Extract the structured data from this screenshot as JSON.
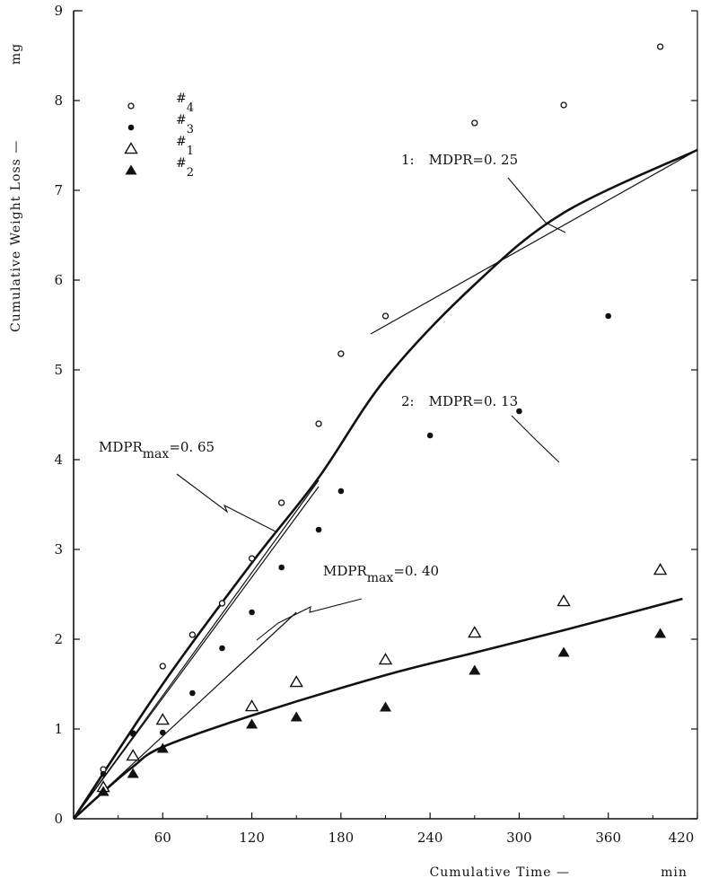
{
  "chart_data": {
    "type": "scatter",
    "xlabel": "Cumulative Time —",
    "xunit": "min",
    "ylabel": "Cumulative Weight Loss —",
    "yunit": "mg",
    "xlim": [
      0,
      420
    ],
    "ylim": [
      0,
      9
    ],
    "xticks": [
      60,
      120,
      180,
      240,
      300,
      360,
      420
    ],
    "yticks": [
      0,
      1,
      2,
      3,
      4,
      5,
      6,
      7,
      8,
      9
    ],
    "grid": false,
    "legend_position": "top-left",
    "series": [
      {
        "name": "#4",
        "marker": "open-circle",
        "x": [
          20,
          40,
          60,
          80,
          100,
          120,
          140,
          165,
          180,
          210,
          270,
          330,
          395
        ],
        "y": [
          0.55,
          0.95,
          1.7,
          2.05,
          2.4,
          2.9,
          3.52,
          4.4,
          5.18,
          5.6,
          7.75,
          7.95,
          8.6
        ]
      },
      {
        "name": "#3",
        "marker": "filled-circle",
        "x": [
          20,
          40,
          60,
          80,
          100,
          120,
          140,
          165,
          180,
          240,
          300,
          360
        ],
        "y": [
          0.5,
          0.95,
          0.96,
          1.4,
          1.9,
          2.3,
          2.8,
          3.22,
          3.65,
          4.27,
          4.54,
          5.6
        ]
      },
      {
        "name": "#1",
        "marker": "open-triangle",
        "x": [
          20,
          40,
          60,
          120,
          150,
          210,
          270,
          330,
          395
        ],
        "y": [
          0.35,
          0.7,
          1.1,
          1.25,
          1.52,
          1.77,
          2.07,
          2.42,
          2.77
        ]
      },
      {
        "name": "#2",
        "marker": "filled-triangle",
        "x": [
          20,
          40,
          60,
          120,
          150,
          210,
          270,
          330,
          395
        ],
        "y": [
          0.3,
          0.5,
          0.78,
          1.05,
          1.13,
          1.24,
          1.65,
          1.85,
          2.06
        ]
      }
    ],
    "lines": [
      {
        "role": "curve-1",
        "x": [
          0,
          60,
          120,
          165,
          210,
          270,
          330,
          420
        ],
        "y": [
          0,
          1.5,
          2.85,
          3.8,
          4.9,
          5.95,
          6.75,
          7.45
        ]
      },
      {
        "role": "curve-1-tangent-a",
        "x": [
          0,
          165
        ],
        "y": [
          0,
          3.77
        ]
      },
      {
        "role": "curve-1-tangent-b",
        "x": [
          0,
          165
        ],
        "y": [
          0,
          3.7
        ]
      },
      {
        "role": "curve-1-slope",
        "x": [
          200,
          420
        ],
        "y": [
          5.4,
          7.45
        ]
      },
      {
        "role": "curve-2",
        "x": [
          0,
          20,
          40,
          60,
          120,
          210,
          270,
          330,
          410
        ],
        "y": [
          0,
          0.3,
          0.58,
          0.8,
          1.15,
          1.6,
          1.85,
          2.1,
          2.45
        ]
      },
      {
        "role": "curve-2-tangent",
        "x": [
          0,
          150
        ],
        "y": [
          0,
          2.3
        ]
      }
    ],
    "annotations": [
      {
        "id": "mdpr1",
        "prefix": "1:",
        "text": "MDPR=0. 25"
      },
      {
        "id": "mdprmax1",
        "main": "MDPR",
        "sub": "max",
        "tail": "=0. 65"
      },
      {
        "id": "mdpr2",
        "prefix": "2:",
        "text": "MDPR=0. 13"
      },
      {
        "id": "mdprmax2",
        "main": "MDPR",
        "sub": "max",
        "tail": "=0. 40"
      }
    ],
    "legend_symbols": [
      "#",
      "#",
      "#",
      "#"
    ],
    "legend_numbers": [
      "4",
      "3",
      "1",
      "2"
    ]
  }
}
